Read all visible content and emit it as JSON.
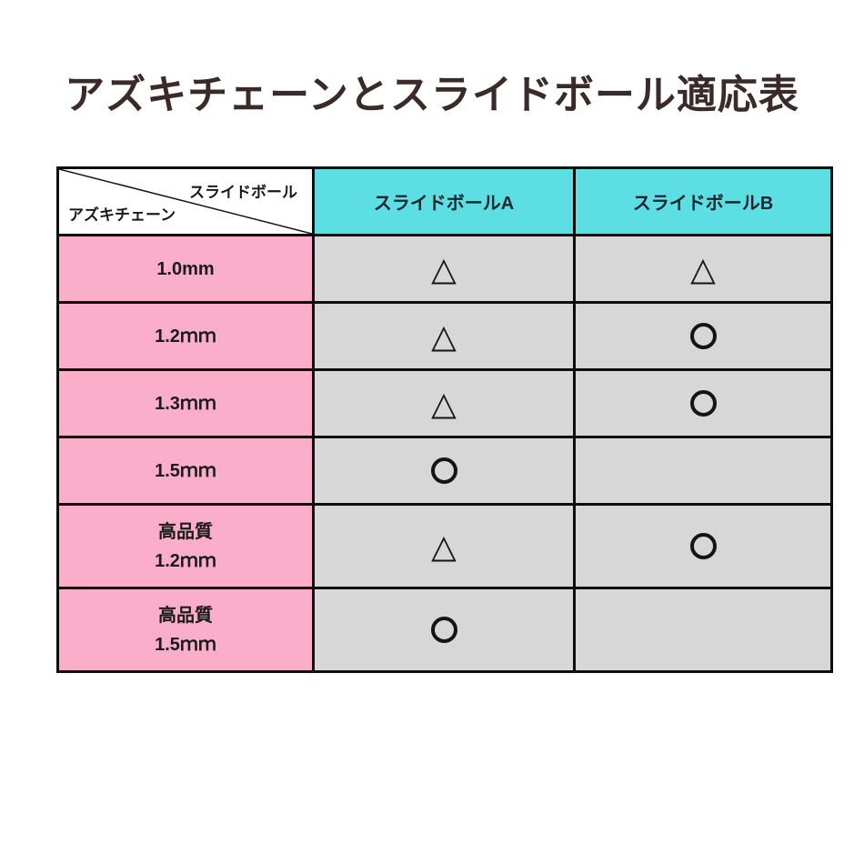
{
  "title": "アズキチェーンとスライドボール適応表",
  "colors": {
    "title_text": "#3a2a28",
    "header_bg": "#5cdee2",
    "header_text": "#1c2630",
    "row_label_bg": "#fbaec9",
    "cell_bg": "#d7d7d7",
    "border": "#0d0d0d"
  },
  "table": {
    "corner": {
      "top_right_label": "スライドボール",
      "bottom_left_label": "アズキチェーン"
    },
    "columns": [
      "スライドボールA",
      "スライドボールB"
    ],
    "rows": [
      {
        "label_lines": [
          "1.0mm"
        ],
        "marks": [
          "△",
          "△"
        ]
      },
      {
        "label_lines": [
          "1.2ｍｍ"
        ],
        "marks": [
          "△",
          "○"
        ]
      },
      {
        "label_lines": [
          "1.3ｍｍ"
        ],
        "marks": [
          "△",
          "○"
        ]
      },
      {
        "label_lines": [
          "1.5ｍｍ"
        ],
        "marks": [
          "○",
          ""
        ]
      },
      {
        "label_lines": [
          "高品質",
          "1.2ｍｍ"
        ],
        "marks": [
          "△",
          "○"
        ]
      },
      {
        "label_lines": [
          "高品質",
          "1.5ｍｍ"
        ],
        "marks": [
          "○",
          ""
        ]
      }
    ]
  },
  "chart_data": {
    "type": "table",
    "title": "アズキチェーンとスライドボール適応表",
    "row_axis_label": "アズキチェーン",
    "column_axis_label": "スライドボール",
    "columns": [
      "スライドボールA",
      "スライドボールB"
    ],
    "rows": [
      "1.0mm",
      "1.2ｍｍ",
      "1.3ｍｍ",
      "1.5ｍｍ",
      "高品質 1.2ｍｍ",
      "高品質 1.5ｍｍ"
    ],
    "values": [
      [
        "△",
        "△"
      ],
      [
        "△",
        "○"
      ],
      [
        "△",
        "○"
      ],
      [
        "○",
        ""
      ],
      [
        "△",
        "○"
      ],
      [
        "○",
        ""
      ]
    ]
  }
}
